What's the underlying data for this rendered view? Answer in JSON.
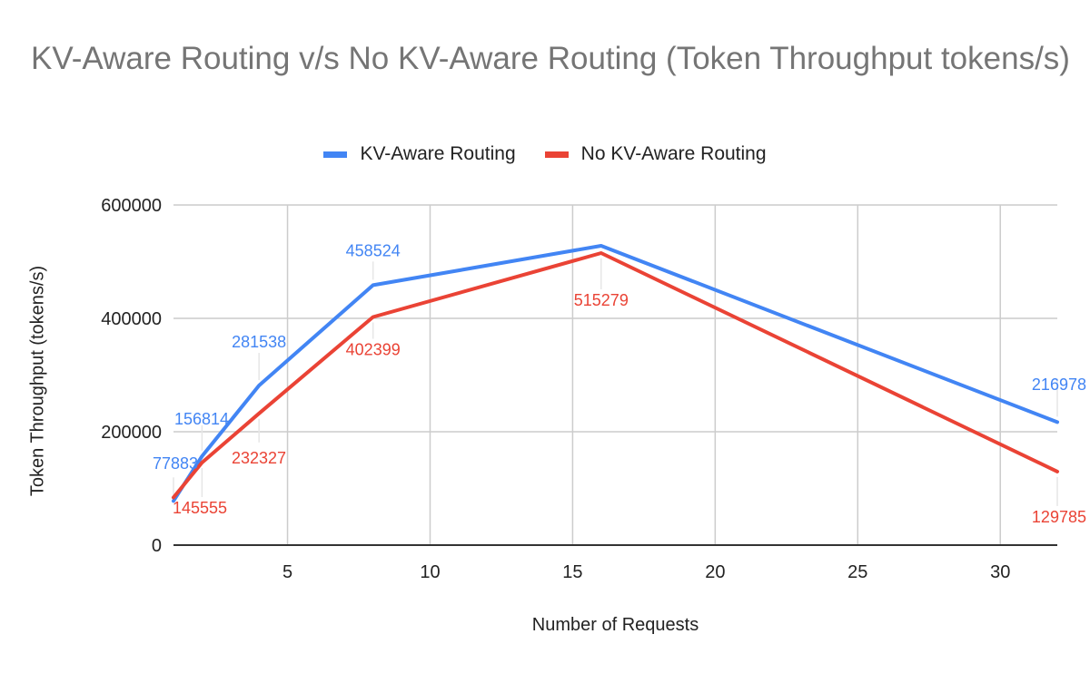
{
  "chart": {
    "title": "KV-Aware Routing v/s No KV-Aware Routing (Token Throughput tokens/s)",
    "xlabel": "Number of Requests",
    "ylabel": "Token Throughput (tokens/s)",
    "legend": [
      {
        "label": "KV-Aware Routing",
        "color": "#4285f4"
      },
      {
        "label": "No KV-Aware Routing",
        "color": "#ea4335"
      }
    ]
  },
  "chart_data": {
    "type": "line",
    "title": "KV-Aware Routing v/s No KV-Aware Routing (Token Throughput tokens/s)",
    "xlabel": "Number of Requests",
    "ylabel": "Token Throughput (tokens/s)",
    "x": [
      1,
      2,
      4,
      8,
      16,
      32
    ],
    "series": [
      {
        "name": "KV-Aware Routing",
        "color": "#4285f4",
        "values": [
          77883,
          156814,
          281538,
          458524,
          528000,
          216978
        ],
        "labels": [
          "77883",
          "156814",
          "281538",
          "458524",
          "",
          "216978"
        ]
      },
      {
        "name": "No KV-Aware Routing",
        "color": "#ea4335",
        "values": [
          84000,
          145555,
          232327,
          402399,
          515279,
          129785
        ],
        "labels": [
          "",
          "145555",
          "232327",
          "402399",
          "515279",
          "129785"
        ]
      }
    ],
    "xticks": [
      "5",
      "10",
      "15",
      "20",
      "25",
      "30"
    ],
    "yticks": [
      "0",
      "200000",
      "400000",
      "600000"
    ],
    "xlim": [
      1,
      32
    ],
    "ylim": [
      0,
      600000
    ],
    "grid": true,
    "legend_position": "top"
  }
}
